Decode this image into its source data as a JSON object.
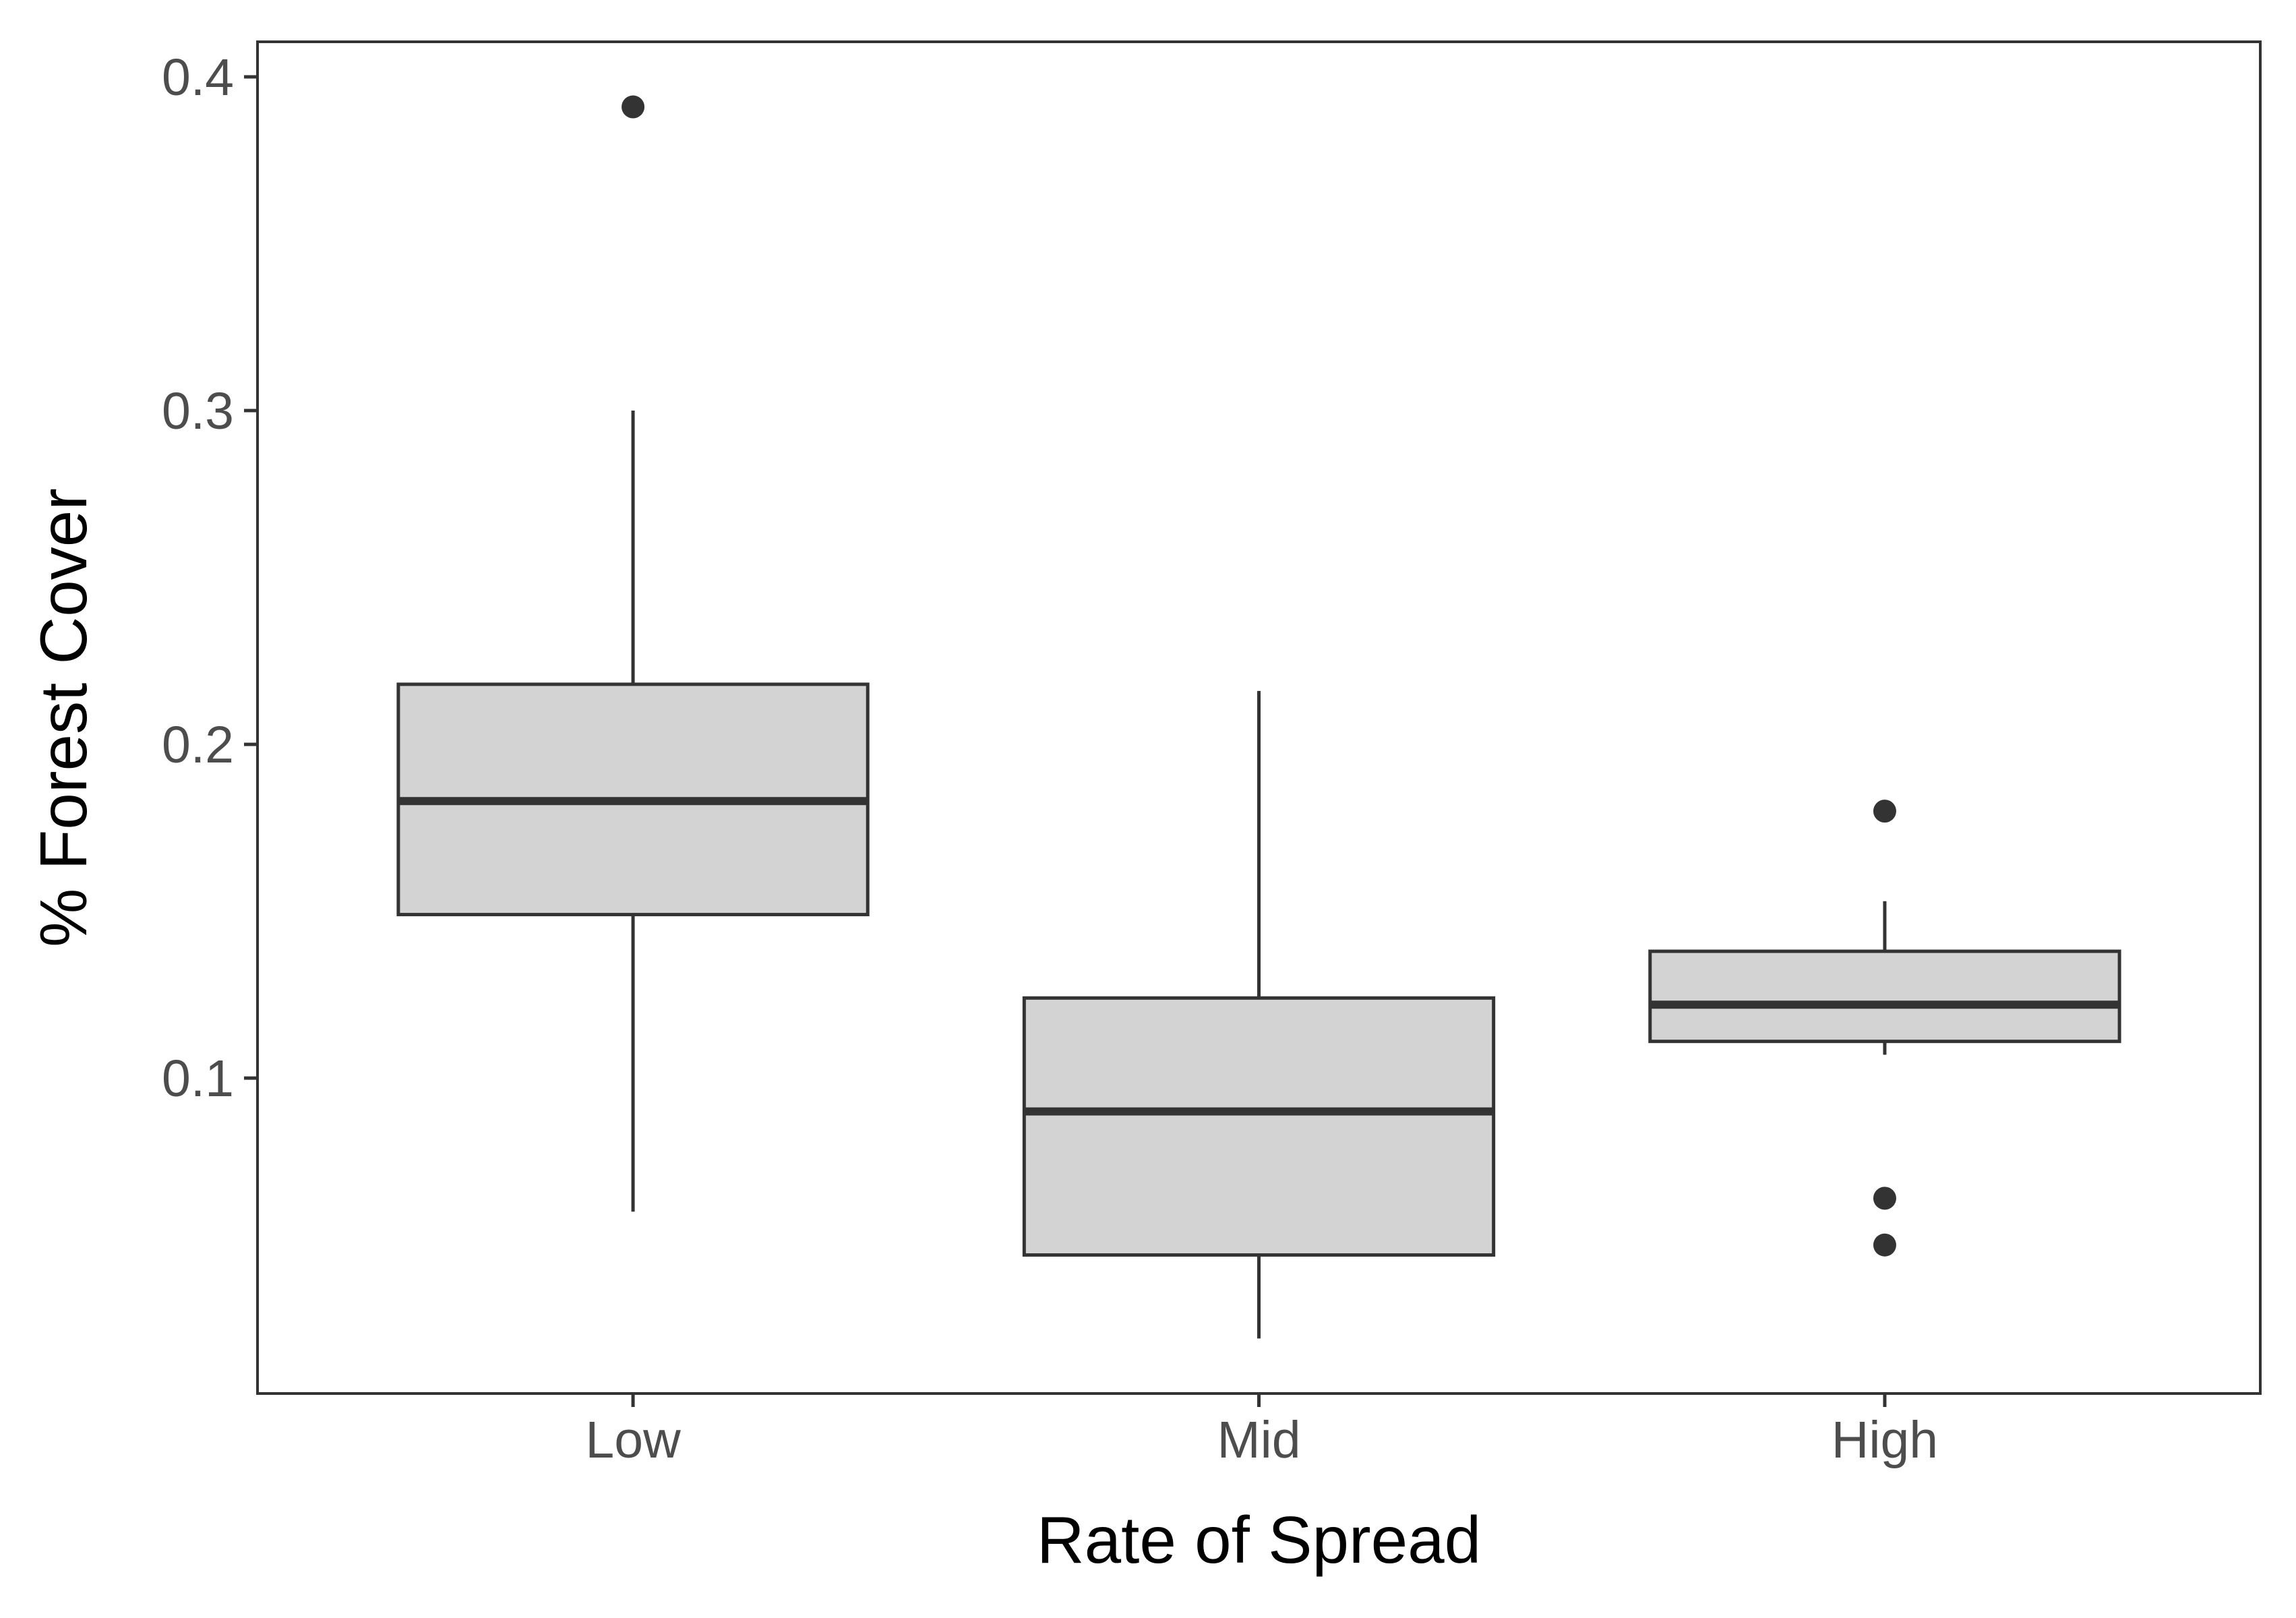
{
  "chart_data": {
    "type": "boxplot",
    "title": "",
    "xlabel": "Rate of Spread",
    "ylabel": "% Forest Cover",
    "categories": [
      "Low",
      "Mid",
      "High"
    ],
    "boxes": [
      {
        "category": "Low",
        "whisker_low": 0.06,
        "q1": 0.149,
        "median": 0.183,
        "q3": 0.218,
        "whisker_high": 0.3,
        "outliers": [
          0.391
        ]
      },
      {
        "category": "Mid",
        "whisker_low": 0.022,
        "q1": 0.047,
        "median": 0.09,
        "q3": 0.124,
        "whisker_high": 0.216,
        "outliers": []
      },
      {
        "category": "High",
        "whisker_low": 0.107,
        "q1": 0.111,
        "median": 0.122,
        "q3": 0.138,
        "whisker_high": 0.153,
        "outliers": [
          0.18,
          0.064,
          0.05
        ]
      }
    ],
    "yticks": [
      0.1,
      0.2,
      0.3,
      0.4
    ],
    "ytick_labels": [
      "0.1",
      "0.2",
      "0.3",
      "0.4"
    ],
    "ylim": [
      0.0055,
      0.4105
    ],
    "grid": false,
    "legend": "none",
    "colors": {
      "box_fill": "#d3d3d3",
      "line": "#333333",
      "panel_border": "#333333",
      "tick_label": "#4d4d4d",
      "axis_title": "#000000",
      "background": "#ffffff"
    }
  }
}
